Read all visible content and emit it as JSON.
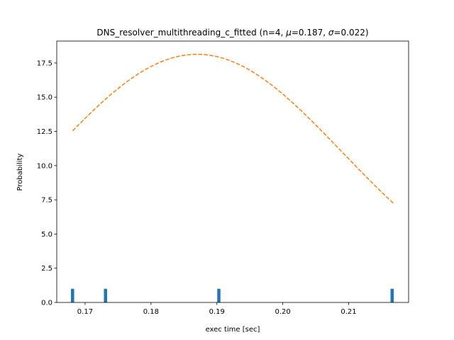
{
  "chart_data": {
    "type": "bar",
    "title": "DNS_resolver_multithreading_c_fitted (n=4, μ=0.187, σ=0.022)",
    "title_parts": {
      "prefix": "DNS_resolver_multithreading_c_fitted (n=4, ",
      "mu_symbol": "μ",
      "mu_value": "=0.187, ",
      "sigma_symbol": "σ",
      "sigma_value": "=0.022)"
    },
    "xlabel": "exec time [sec]",
    "ylabel": "Probability",
    "xlim": [
      0.1657,
      0.2191
    ],
    "ylim": [
      0,
      19.1
    ],
    "x_ticks": [
      0.17,
      0.18,
      0.19,
      0.2,
      0.21
    ],
    "x_tick_labels": [
      "0.17",
      "0.18",
      "0.19",
      "0.20",
      "0.21"
    ],
    "y_ticks": [
      0,
      2.5,
      5.0,
      7.5,
      10.0,
      12.5,
      15.0,
      17.5
    ],
    "y_tick_labels": [
      "0.0",
      "2.5",
      "5.0",
      "7.5",
      "10.0",
      "12.5",
      "15.0",
      "17.5"
    ],
    "grid": false,
    "colors": {
      "bars": "#1f77b4",
      "fit": "#ff7f0e",
      "axes": "#000000"
    },
    "series": [
      {
        "kind": "histogram",
        "x": [
          0.1681,
          0.1731,
          0.1903,
          0.2166
        ],
        "values": [
          1,
          1,
          1,
          1
        ]
      },
      {
        "kind": "fitted-normal",
        "style": "dashed",
        "mu": 0.187,
        "sigma": 0.022,
        "x_range": [
          0.1681,
          0.2169
        ]
      }
    ]
  }
}
